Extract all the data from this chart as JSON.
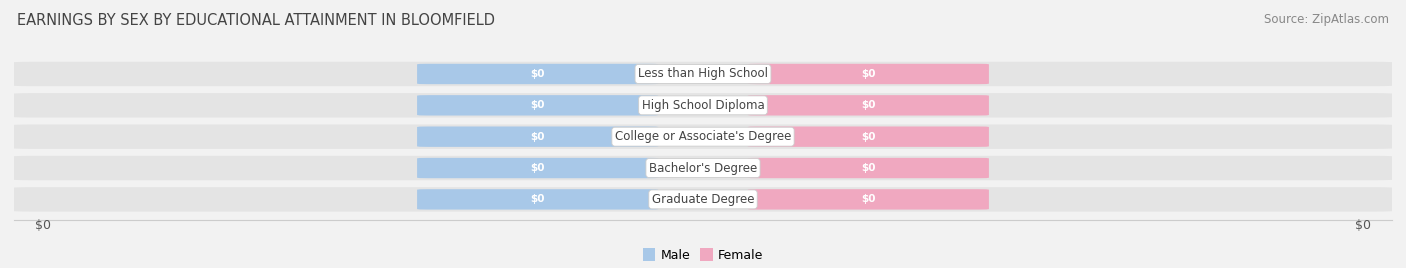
{
  "title": "EARNINGS BY SEX BY EDUCATIONAL ATTAINMENT IN BLOOMFIELD",
  "source": "Source: ZipAtlas.com",
  "categories": [
    "Less than High School",
    "High School Diploma",
    "College or Associate's Degree",
    "Bachelor's Degree",
    "Graduate Degree"
  ],
  "male_values": [
    0,
    0,
    0,
    0,
    0
  ],
  "female_values": [
    0,
    0,
    0,
    0,
    0
  ],
  "male_color": "#a8c8e8",
  "female_color": "#f0a8c0",
  "background_color": "#f2f2f2",
  "row_bg_color": "#e4e4e4",
  "xlabel_left": "$0",
  "xlabel_right": "$0",
  "title_fontsize": 10.5,
  "source_fontsize": 8.5,
  "tick_fontsize": 9,
  "label_fontsize": 7.5,
  "category_fontsize": 8.5,
  "legend_male": "Male",
  "legend_female": "Female"
}
